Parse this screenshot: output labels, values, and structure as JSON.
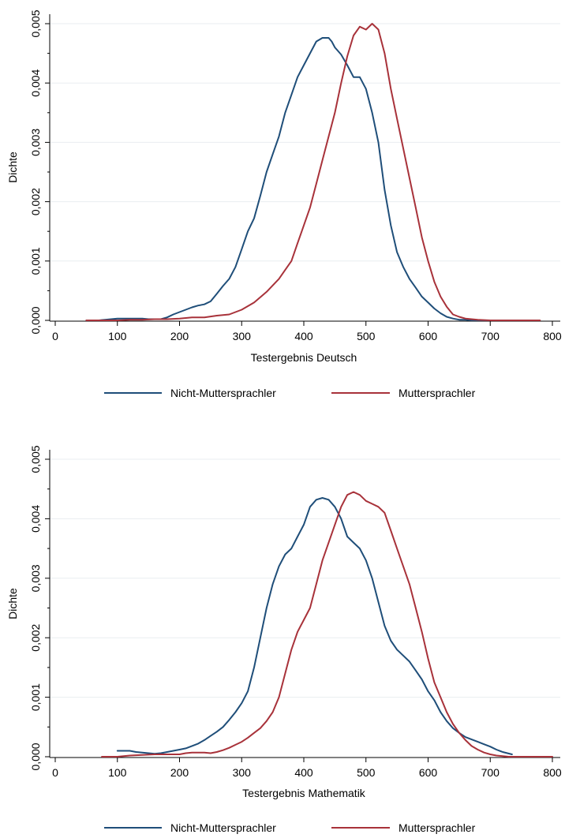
{
  "chart_data": [
    {
      "type": "line",
      "xlabel": "Testergebnis Deutsch",
      "ylabel": "Dichte",
      "xlim": [
        0,
        800
      ],
      "ylim": [
        0,
        0.005
      ],
      "xticks": [
        0,
        100,
        200,
        300,
        400,
        500,
        600,
        700,
        800
      ],
      "xtick_labels": [
        "0",
        "100",
        "200",
        "300",
        "400",
        "500",
        "600",
        "700",
        "800"
      ],
      "yticks": [
        0,
        0.001,
        0.002,
        0.003,
        0.004,
        0.005
      ],
      "ytick_labels": [
        "0,000",
        "0,001",
        "0,002",
        "0,003",
        "0,004",
        "0,005"
      ],
      "grid": "horizontal",
      "legend_position": "bottom",
      "series": [
        {
          "name": "Nicht-Muttersprachler",
          "color": "#1f4e79",
          "x": [
            50,
            60,
            70,
            80,
            90,
            100,
            110,
            120,
            130,
            140,
            150,
            160,
            170,
            180,
            190,
            200,
            210,
            220,
            230,
            240,
            250,
            260,
            270,
            280,
            290,
            300,
            310,
            320,
            330,
            340,
            350,
            360,
            370,
            380,
            390,
            400,
            410,
            420,
            430,
            440,
            445,
            450,
            460,
            470,
            480,
            490,
            500,
            510,
            520,
            530,
            540,
            550,
            560,
            570,
            580,
            590,
            600,
            610,
            620,
            630,
            640,
            650,
            660,
            670,
            680,
            690,
            700,
            705
          ],
          "values": [
            0.0,
            0.0,
            0.0,
            1e-05,
            2e-05,
            3e-05,
            3e-05,
            3e-05,
            3e-05,
            3e-05,
            2e-05,
            2e-05,
            2e-05,
            5e-05,
            0.0001,
            0.00014,
            0.00018,
            0.00022,
            0.00025,
            0.00027,
            0.00032,
            0.00045,
            0.00058,
            0.0007,
            0.0009,
            0.0012,
            0.0015,
            0.00172,
            0.0021,
            0.0025,
            0.0028,
            0.0031,
            0.0035,
            0.0038,
            0.0041,
            0.0043,
            0.0045,
            0.0047,
            0.00476,
            0.00476,
            0.0047,
            0.0046,
            0.00448,
            0.0043,
            0.0041,
            0.0041,
            0.0039,
            0.0035,
            0.003,
            0.0022,
            0.0016,
            0.00115,
            0.0009,
            0.0007,
            0.00055,
            0.0004,
            0.0003,
            0.0002,
            0.00012,
            6e-05,
            3e-05,
            1e-05,
            1e-05,
            0.0,
            0.0,
            0.0,
            0.0,
            0.0
          ]
        },
        {
          "name": "Muttersprachler",
          "color": "#a8323a",
          "x": [
            50,
            60,
            70,
            80,
            90,
            100,
            120,
            140,
            160,
            180,
            200,
            220,
            240,
            260,
            280,
            300,
            320,
            340,
            360,
            370,
            380,
            390,
            400,
            410,
            420,
            430,
            440,
            450,
            460,
            470,
            480,
            490,
            500,
            510,
            520,
            530,
            540,
            550,
            560,
            570,
            580,
            590,
            600,
            610,
            620,
            630,
            640,
            650,
            660,
            670,
            680,
            700,
            720,
            740,
            760,
            780
          ],
          "values": [
            0.0,
            0.0,
            0.0,
            0.0,
            0.0,
            0.0,
            1e-05,
            1e-05,
            2e-05,
            2e-05,
            3e-05,
            5e-05,
            5e-05,
            8e-05,
            0.0001,
            0.00018,
            0.0003,
            0.00048,
            0.0007,
            0.00085,
            0.001,
            0.0013,
            0.0016,
            0.0019,
            0.0023,
            0.0027,
            0.0031,
            0.0035,
            0.004,
            0.00445,
            0.0048,
            0.00495,
            0.0049,
            0.005,
            0.0049,
            0.0045,
            0.0039,
            0.0034,
            0.0029,
            0.0024,
            0.0019,
            0.0014,
            0.001,
            0.00065,
            0.0004,
            0.00023,
            0.0001,
            6e-05,
            3e-05,
            2e-05,
            1e-05,
            0.0,
            0.0,
            0.0,
            0.0,
            0.0
          ]
        }
      ]
    },
    {
      "type": "line",
      "xlabel": "Testergebnis Mathematik",
      "ylabel": "Dichte",
      "xlim": [
        0,
        800
      ],
      "ylim": [
        0,
        0.005
      ],
      "xticks": [
        0,
        100,
        200,
        300,
        400,
        500,
        600,
        700,
        800
      ],
      "xtick_labels": [
        "0",
        "100",
        "200",
        "300",
        "400",
        "500",
        "600",
        "700",
        "800"
      ],
      "yticks": [
        0,
        0.001,
        0.002,
        0.003,
        0.004,
        0.005
      ],
      "ytick_labels": [
        "0,000",
        "0,001",
        "0,002",
        "0,003",
        "0,004",
        "0,005"
      ],
      "grid": "horizontal",
      "legend_position": "bottom",
      "series": [
        {
          "name": "Nicht-Muttersprachler",
          "color": "#1f4e79",
          "x": [
            100,
            110,
            120,
            130,
            140,
            150,
            160,
            170,
            180,
            190,
            200,
            210,
            220,
            230,
            240,
            250,
            260,
            270,
            280,
            290,
            300,
            310,
            320,
            330,
            340,
            350,
            360,
            370,
            380,
            390,
            400,
            410,
            420,
            430,
            440,
            450,
            460,
            470,
            480,
            490,
            500,
            510,
            520,
            530,
            540,
            550,
            560,
            570,
            580,
            590,
            600,
            610,
            620,
            630,
            640,
            650,
            660,
            670,
            680,
            690,
            700,
            710,
            720,
            735
          ],
          "values": [
            0.0001,
            0.0001,
            0.0001,
            8e-05,
            7e-05,
            6e-05,
            5e-05,
            6e-05,
            8e-05,
            0.0001,
            0.00012,
            0.00014,
            0.00018,
            0.00022,
            0.00028,
            0.00035,
            0.00042,
            0.0005,
            0.00062,
            0.00075,
            0.0009,
            0.0011,
            0.0015,
            0.002,
            0.0025,
            0.0029,
            0.0032,
            0.0034,
            0.0035,
            0.0037,
            0.0039,
            0.0042,
            0.00432,
            0.00435,
            0.00432,
            0.0042,
            0.004,
            0.0037,
            0.0036,
            0.0035,
            0.0033,
            0.003,
            0.0026,
            0.0022,
            0.00195,
            0.0018,
            0.0017,
            0.0016,
            0.00145,
            0.0013,
            0.0011,
            0.00095,
            0.00075,
            0.0006,
            0.00048,
            0.0004,
            0.00033,
            0.00029,
            0.00025,
            0.00021,
            0.00017,
            0.00012,
            8e-05,
            4e-05
          ]
        },
        {
          "name": "Muttersprachler",
          "color": "#a8323a",
          "x": [
            75,
            90,
            100,
            120,
            140,
            160,
            180,
            200,
            210,
            220,
            230,
            240,
            250,
            260,
            270,
            280,
            290,
            300,
            310,
            320,
            330,
            340,
            350,
            360,
            370,
            380,
            390,
            400,
            410,
            420,
            430,
            440,
            450,
            460,
            470,
            480,
            490,
            500,
            510,
            520,
            530,
            540,
            550,
            560,
            570,
            580,
            590,
            600,
            610,
            620,
            630,
            640,
            650,
            660,
            670,
            680,
            690,
            700,
            710,
            720,
            730,
            740,
            760,
            780,
            800
          ],
          "values": [
            0.0,
            0.0,
            0.0,
            2e-05,
            3e-05,
            4e-05,
            4e-05,
            4e-05,
            6e-05,
            7e-05,
            7e-05,
            7e-05,
            6e-05,
            8e-05,
            0.00011,
            0.00015,
            0.0002,
            0.00025,
            0.00032,
            0.0004,
            0.00048,
            0.0006,
            0.00075,
            0.001,
            0.0014,
            0.0018,
            0.0021,
            0.0023,
            0.0025,
            0.0029,
            0.0033,
            0.0036,
            0.0039,
            0.0042,
            0.0044,
            0.00445,
            0.0044,
            0.0043,
            0.00425,
            0.0042,
            0.0041,
            0.0038,
            0.0035,
            0.0032,
            0.0029,
            0.0025,
            0.0021,
            0.00165,
            0.00125,
            0.001,
            0.00075,
            0.00055,
            0.0004,
            0.00028,
            0.00018,
            0.00012,
            7e-05,
            4e-05,
            2e-05,
            1e-05,
            0.0,
            0.0,
            0.0,
            0.0,
            0.0
          ]
        }
      ]
    }
  ]
}
